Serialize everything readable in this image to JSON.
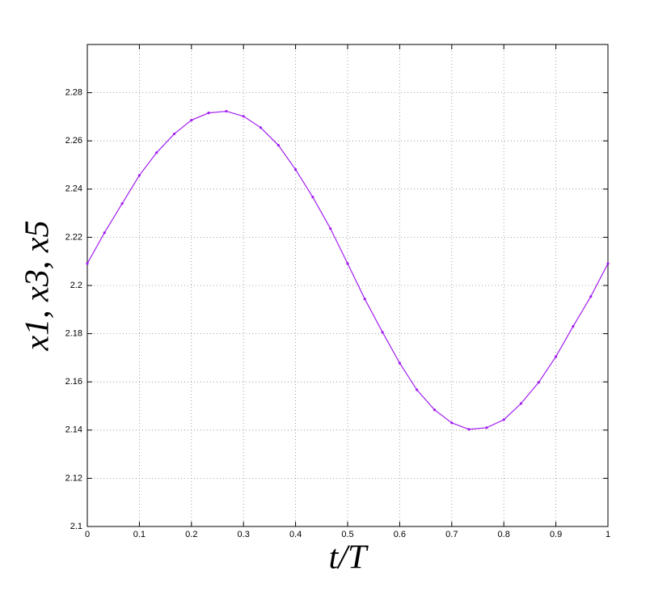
{
  "chart_data": {
    "type": "line",
    "xlabel": "t/T",
    "ylabel": "x1, x3, x5",
    "x": [
      0,
      0.033,
      0.067,
      0.1,
      0.133,
      0.167,
      0.2,
      0.233,
      0.267,
      0.3,
      0.333,
      0.367,
      0.4,
      0.433,
      0.467,
      0.5,
      0.533,
      0.567,
      0.6,
      0.633,
      0.667,
      0.7,
      0.733,
      0.767,
      0.8,
      0.833,
      0.867,
      0.9,
      0.933,
      0.967,
      1
    ],
    "series": [
      {
        "color": "#a21df0",
        "values": [
          2.2091,
          2.2219,
          2.234,
          2.2457,
          2.2551,
          2.2629,
          2.2686,
          2.2716,
          2.2723,
          2.2702,
          2.2655,
          2.2582,
          2.2481,
          2.2367,
          2.2236,
          2.2091,
          2.1944,
          2.1806,
          2.1678,
          2.1567,
          2.1484,
          2.143,
          2.1403,
          2.141,
          2.1443,
          2.151,
          2.1598,
          2.1705,
          2.183,
          2.1954,
          2.2091
        ]
      }
    ],
    "xlim": [
      0,
      1
    ],
    "xticks": [
      0,
      0.1,
      0.2,
      0.3,
      0.4,
      0.5,
      0.6,
      0.7,
      0.8,
      0.9,
      1
    ],
    "ylim": [
      2.1,
      2.3
    ],
    "yticks": [
      2.1,
      2.12,
      2.14,
      2.16,
      2.18,
      2.2,
      2.22,
      2.24,
      2.26,
      2.28
    ],
    "grid": true,
    "markers": true
  }
}
